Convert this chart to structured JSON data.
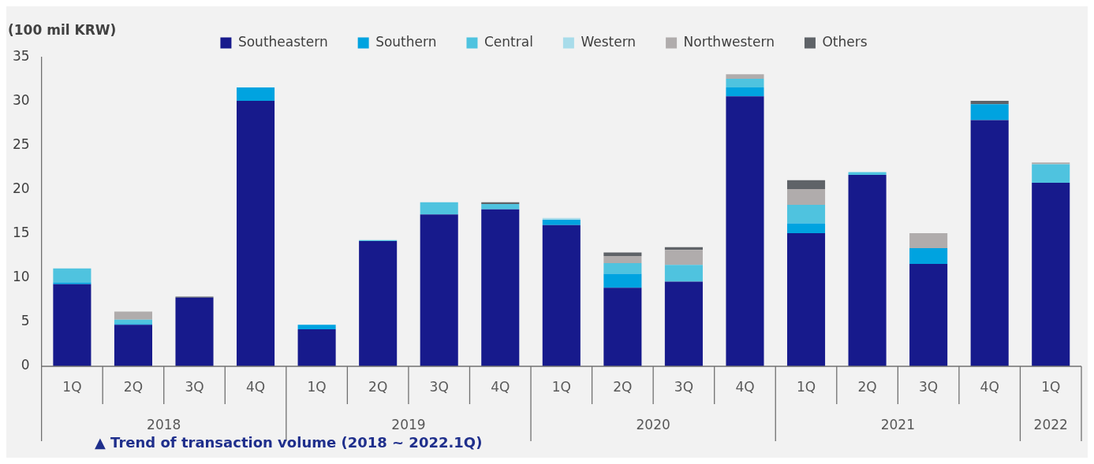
{
  "chart_data": {
    "type": "bar",
    "stacked": true,
    "ylabel": "(100 mil KRW)",
    "legend": "top",
    "categories": [
      "1Q",
      "2Q",
      "3Q",
      "4Q",
      "1Q",
      "2Q",
      "3Q",
      "4Q",
      "1Q",
      "2Q",
      "3Q",
      "4Q",
      "1Q",
      "2Q",
      "3Q",
      "4Q",
      "1Q"
    ],
    "series": [
      {
        "name": "Southeastern",
        "color": "#171a8c",
        "values": [
          9.3,
          4.7,
          7.8,
          30.1,
          4.2,
          14.2,
          17.2,
          17.8,
          16.0,
          8.9,
          9.6,
          30.6,
          15.1,
          21.7,
          11.6,
          27.9,
          20.8
        ]
      },
      {
        "name": "Southern",
        "color": "#00a3e0",
        "values": [
          0.2,
          0.1,
          0,
          1.5,
          0.5,
          0,
          0,
          0,
          0.6,
          1.6,
          0,
          1.0,
          1.1,
          0,
          1.8,
          1.8,
          0
        ]
      },
      {
        "name": "Central",
        "color": "#4fc3df",
        "values": [
          1.6,
          0.5,
          0,
          0,
          0,
          0.1,
          1.4,
          0.6,
          0,
          1.2,
          1.9,
          1.0,
          2.1,
          0.3,
          0,
          0,
          2.1
        ]
      },
      {
        "name": "Western",
        "color": "#a8dcea",
        "values": [
          0,
          0,
          0,
          0,
          null,
          0,
          0,
          0,
          0.2,
          0,
          0,
          null,
          0,
          0,
          0,
          null,
          0
        ]
      },
      {
        "name": "Northwestern",
        "color": "#b0acac",
        "values": [
          0,
          0.9,
          0,
          0,
          0,
          0,
          0,
          null,
          0,
          0.8,
          1.7,
          0.5,
          1.8,
          0,
          1.7,
          0,
          0.2
        ]
      },
      {
        "name": "Others",
        "color": "#5f6368",
        "values": [
          0,
          0,
          0.1,
          0,
          0,
          0,
          0,
          0.2,
          0,
          0.4,
          0.3,
          0,
          1.0,
          0,
          0,
          0.4,
          0
        ]
      }
    ],
    "ylim": [
      0,
      35
    ],
    "yticks": [
      0,
      5,
      10,
      15,
      20,
      25,
      30,
      35
    ],
    "annotations": [
      "2018",
      "2019",
      "2020",
      "2021",
      "2022",
      "▲ Trend of transaction volume (2018 ~ 2022.1Q)"
    ]
  }
}
